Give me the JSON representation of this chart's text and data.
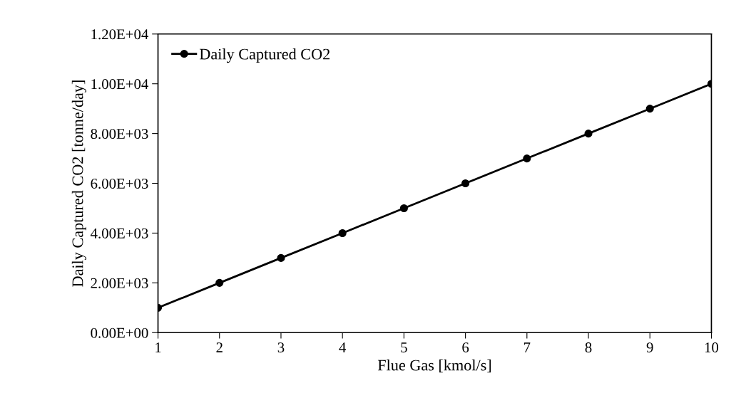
{
  "chart_data": {
    "type": "line",
    "xlabel": "Flue Gas [kmol/s]",
    "ylabel": "Daily Captured CO2 [tonne/day]",
    "x": [
      1,
      2,
      3,
      4,
      5,
      6,
      7,
      8,
      9,
      10
    ],
    "series": [
      {
        "name": "Daily Captured CO2",
        "color": "#000000",
        "values": [
          1000,
          2000,
          3000,
          4000,
          5000,
          6000,
          7000,
          8000,
          9000,
          10000
        ]
      }
    ],
    "xlim": [
      1,
      10
    ],
    "xticks": [
      1,
      2,
      3,
      4,
      5,
      6,
      7,
      8,
      9,
      10
    ],
    "ylim": [
      0,
      12000
    ],
    "yticks": [
      {
        "value": 0,
        "label": "0.00E+00"
      },
      {
        "value": 2000,
        "label": "2.00E+03"
      },
      {
        "value": 4000,
        "label": "4.00E+03"
      },
      {
        "value": 6000,
        "label": "6.00E+03"
      },
      {
        "value": 8000,
        "label": "8.00E+03"
      },
      {
        "value": 10000,
        "label": "1.00E+04"
      },
      {
        "value": 12000,
        "label": "1.20E+04"
      }
    ],
    "marker": "circle",
    "line_style": "solid",
    "legend": "top left",
    "grid": false
  }
}
